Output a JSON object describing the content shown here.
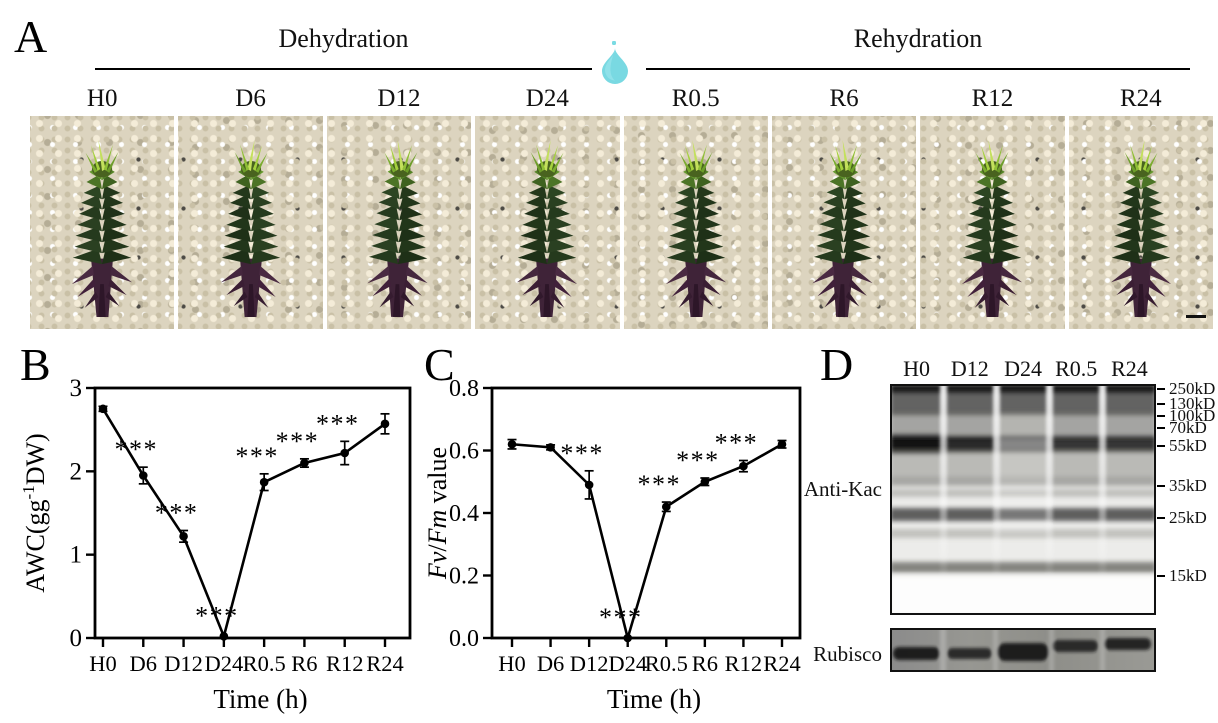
{
  "figure": {
    "panel_a": {
      "label": "A",
      "phases": [
        {
          "name": "Dehydration",
          "timepoints": [
            "H0",
            "D6",
            "D12",
            "D24"
          ]
        },
        {
          "name": "Rehydration",
          "timepoints": [
            "R0.5",
            "R6",
            "R12",
            "R24"
          ]
        }
      ],
      "timepoint_labels": [
        "H0",
        "D6",
        "D12",
        "D24",
        "R0.5",
        "R6",
        "R12",
        "R24"
      ],
      "water_drop_color": "#79d9e2"
    },
    "panel_b": {
      "label": "B"
    },
    "panel_c": {
      "label": "C"
    },
    "panel_d": {
      "label": "D",
      "lane_labels": [
        "H0",
        "D12",
        "D24",
        "R0.5",
        "R24"
      ],
      "antibody_label": "Anti-Kac",
      "loading_control_label": "Rubisco",
      "markers": [
        "250kD",
        "130kD",
        "100kD",
        "70kD",
        "55kD",
        "35kD",
        "25kD",
        "15kD"
      ]
    }
  },
  "chart_data": [
    {
      "id": "awc",
      "type": "line",
      "title": "",
      "categories": [
        "H0",
        "D6",
        "D12",
        "D24",
        "R0.5",
        "R6",
        "R12",
        "R24"
      ],
      "values": [
        2.75,
        1.95,
        1.22,
        0.02,
        1.87,
        2.1,
        2.22,
        2.57
      ],
      "errors": [
        0.03,
        0.1,
        0.07,
        0.02,
        0.1,
        0.05,
        0.14,
        0.12
      ],
      "significance": [
        "",
        "***",
        "***",
        "***",
        "***",
        "***",
        "***",
        ""
      ],
      "xlabel": "Time (h)",
      "ylabel_segments": [
        {
          "text": "AWC(gg"
        },
        {
          "text": "-1",
          "sup": true
        },
        {
          "text": "DW)"
        }
      ],
      "ylim": [
        0,
        3
      ],
      "ytick_values": [
        0,
        1,
        2,
        3
      ],
      "ytick_labels": [
        "0",
        "1",
        "2",
        "3"
      ],
      "grid": false,
      "legend": "none"
    },
    {
      "id": "fvfm",
      "type": "line",
      "title": "",
      "categories": [
        "H0",
        "D6",
        "D12",
        "D24",
        "R0.5",
        "R6",
        "R12",
        "R24"
      ],
      "values": [
        0.62,
        0.61,
        0.49,
        0.0,
        0.42,
        0.5,
        0.55,
        0.62
      ],
      "errors": [
        0.015,
        0.008,
        0.045,
        0.005,
        0.015,
        0.012,
        0.018,
        0.012
      ],
      "significance": [
        "",
        "",
        "***",
        "***",
        "***",
        "***",
        "***",
        ""
      ],
      "xlabel": "Time (h)",
      "ylabel_segments": [
        {
          "text": "Fv",
          "italic": true
        },
        {
          "text": "/"
        },
        {
          "text": "Fm",
          "italic": true
        },
        {
          "text": " value"
        }
      ],
      "ylim": [
        0,
        0.8
      ],
      "ytick_values": [
        0,
        0.2,
        0.4,
        0.6,
        0.8
      ],
      "ytick_labels": [
        "0.0",
        "0.2",
        "0.4",
        "0.6",
        "0.8"
      ],
      "grid": false,
      "legend": "none"
    }
  ]
}
